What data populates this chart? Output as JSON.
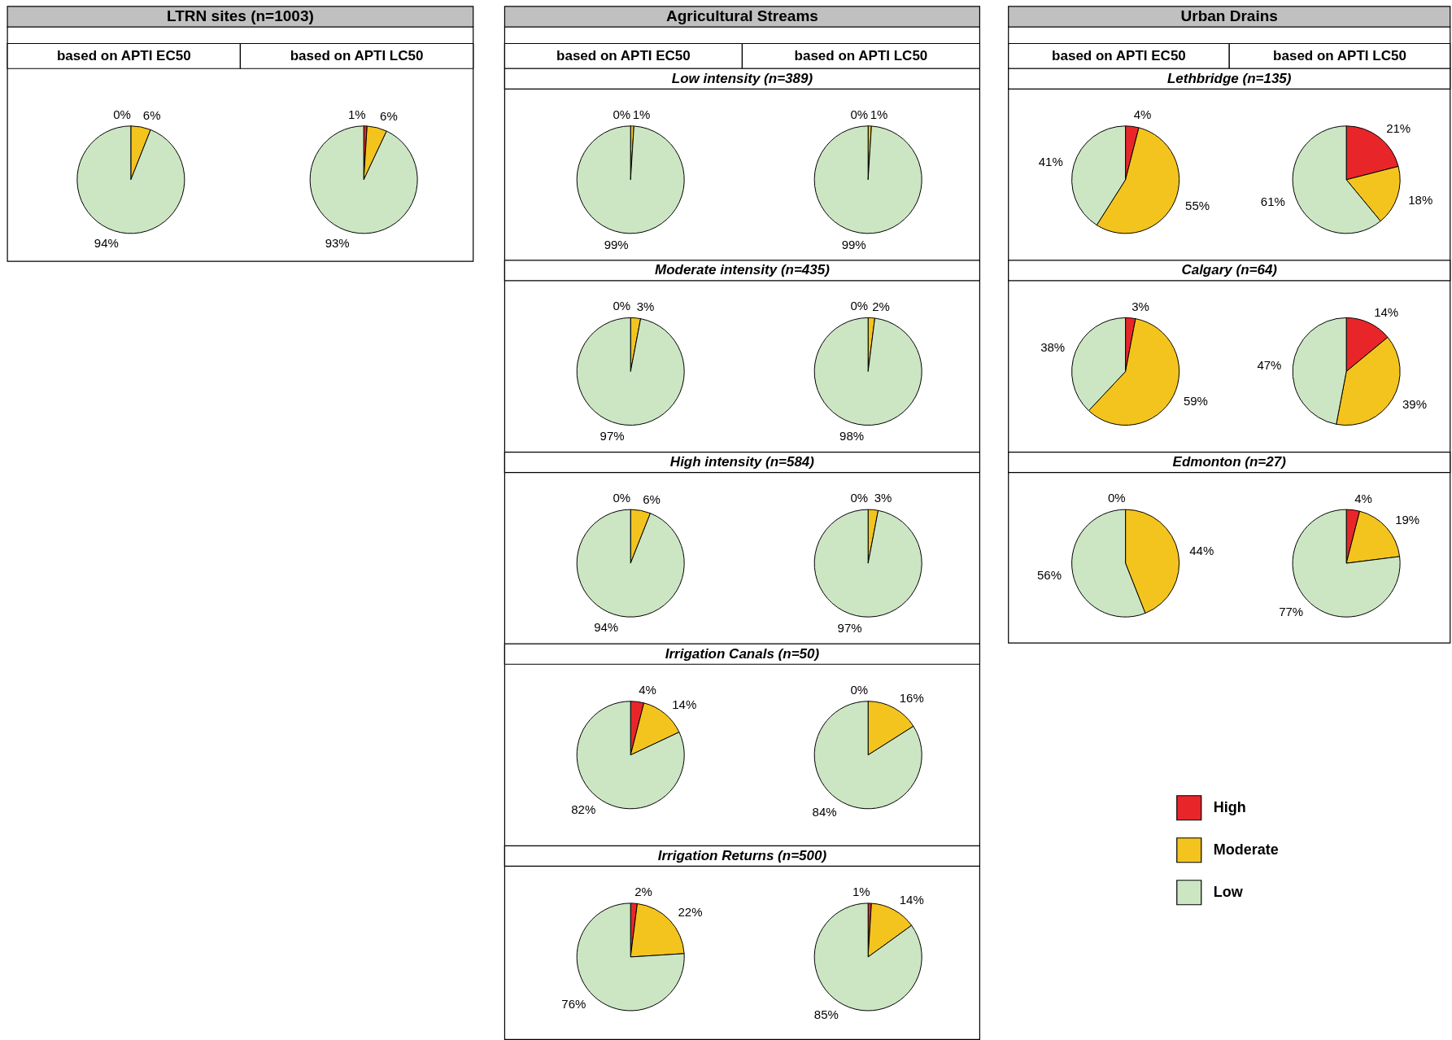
{
  "chart_data": [
    {
      "type": "other",
      "title": "LTRN sites (n=1003)",
      "annotations": [
        "based on APTI EC50",
        "based on APTI LC50"
      ]
    },
    {
      "type": "pie",
      "categories": [
        "High",
        "Moderate",
        "Low"
      ],
      "values": [
        0,
        6,
        94
      ],
      "colors": [
        "#e8262a",
        "#f4c41e",
        "#cce6c4"
      ],
      "value_labels": [
        "0%",
        "6%",
        "94%"
      ],
      "legend": "bottom right"
    },
    {
      "type": "pie",
      "values": [
        1,
        6,
        93
      ],
      "colors": [
        "#e8262a",
        "#f4c41e",
        "#cce6c4"
      ],
      "value_labels": [
        "1%",
        "6%",
        "93%"
      ]
    },
    {
      "type": "other",
      "title": "Agricultural Streams",
      "annotations": [
        "based on APTI EC50",
        "based on APTI LC50"
      ]
    },
    {
      "type": "pie",
      "title": "Low intensity (n=389)",
      "values": [
        0,
        1,
        99
      ],
      "colors": [
        "#e8262a",
        "#f4c41e",
        "#cce6c4"
      ],
      "value_labels": [
        "0%",
        "1%",
        "99%"
      ]
    },
    {
      "type": "pie",
      "values": [
        0,
        1,
        99
      ],
      "colors": [
        "#e8262a",
        "#f4c41e",
        "#cce6c4"
      ],
      "value_labels": [
        "0%",
        "1%",
        "99%"
      ]
    },
    {
      "type": "pie",
      "title": "Moderate intensity (n=435)",
      "values": [
        0,
        3,
        97
      ],
      "colors": [
        "#e8262a",
        "#f4c41e",
        "#cce6c4"
      ],
      "value_labels": [
        "0%",
        "3%",
        "97%"
      ]
    },
    {
      "type": "pie",
      "values": [
        0,
        2,
        98
      ],
      "colors": [
        "#e8262a",
        "#f4c41e",
        "#cce6c4"
      ],
      "value_labels": [
        "0%",
        "2%",
        "98%"
      ]
    },
    {
      "type": "pie",
      "title": "High intensity (n=584)",
      "values": [
        0,
        6,
        94
      ],
      "colors": [
        "#e8262a",
        "#f4c41e",
        "#cce6c4"
      ],
      "value_labels": [
        "0%",
        "6%",
        "94%"
      ]
    },
    {
      "type": "pie",
      "values": [
        0,
        3,
        97
      ],
      "colors": [
        "#e8262a",
        "#f4c41e",
        "#cce6c4"
      ],
      "value_labels": [
        "0%",
        "3%",
        "97%"
      ]
    },
    {
      "type": "pie",
      "title": "Irrigation Canals (n=50)",
      "values": [
        4,
        14,
        82
      ],
      "colors": [
        "#e8262a",
        "#f4c41e",
        "#cce6c4"
      ],
      "value_labels": [
        "4%",
        "14%",
        "82%"
      ]
    },
    {
      "type": "pie",
      "values": [
        0,
        16,
        84
      ],
      "colors": [
        "#e8262a",
        "#f4c41e",
        "#cce6c4"
      ],
      "value_labels": [
        "0%",
        "16%",
        "84%"
      ]
    },
    {
      "type": "pie",
      "title": "Irrigation Returns (n=500)",
      "values": [
        2,
        22,
        76
      ],
      "colors": [
        "#e8262a",
        "#f4c41e",
        "#cce6c4"
      ],
      "value_labels": [
        "2%",
        "22%",
        "76%"
      ]
    },
    {
      "type": "pie",
      "values": [
        1,
        14,
        85
      ],
      "colors": [
        "#e8262a",
        "#f4c41e",
        "#cce6c4"
      ],
      "value_labels": [
        "1%",
        "14%",
        "85%"
      ]
    },
    {
      "type": "other",
      "title": "Urban Drains",
      "annotations": [
        "based on APTI EC50",
        "based on APTI LC50"
      ]
    },
    {
      "type": "pie",
      "title": "Lethbridge (n=135)",
      "values": [
        4,
        55,
        41
      ],
      "colors": [
        "#e8262a",
        "#f4c41e",
        "#cce6c4"
      ],
      "value_labels": [
        "4%",
        "55%",
        "41%"
      ]
    },
    {
      "type": "pie",
      "values": [
        21,
        18,
        61
      ],
      "colors": [
        "#e8262a",
        "#f4c41e",
        "#cce6c4"
      ],
      "value_labels": [
        "21%",
        "18%",
        "61%"
      ]
    },
    {
      "type": "pie",
      "title": "Calgary (n=64)",
      "values": [
        3,
        59,
        38
      ],
      "colors": [
        "#e8262a",
        "#f4c41e",
        "#cce6c4"
      ],
      "value_labels": [
        "3%",
        "59%",
        "38%"
      ]
    },
    {
      "type": "pie",
      "values": [
        14,
        39,
        47
      ],
      "colors": [
        "#e8262a",
        "#f4c41e",
        "#cce6c4"
      ],
      "value_labels": [
        "14%",
        "39%",
        "47%"
      ]
    },
    {
      "type": "pie",
      "title": "Edmonton (n=27)",
      "values": [
        0,
        44,
        56
      ],
      "colors": [
        "#e8262a",
        "#f4c41e",
        "#cce6c4"
      ],
      "value_labels": [
        "0%",
        "44%",
        "56%"
      ]
    },
    {
      "type": "pie",
      "values": [
        4,
        19,
        77
      ],
      "colors": [
        "#e8262a",
        "#f4c41e",
        "#cce6c4"
      ],
      "value_labels": [
        "4%",
        "19%",
        "77%"
      ]
    }
  ]
}
